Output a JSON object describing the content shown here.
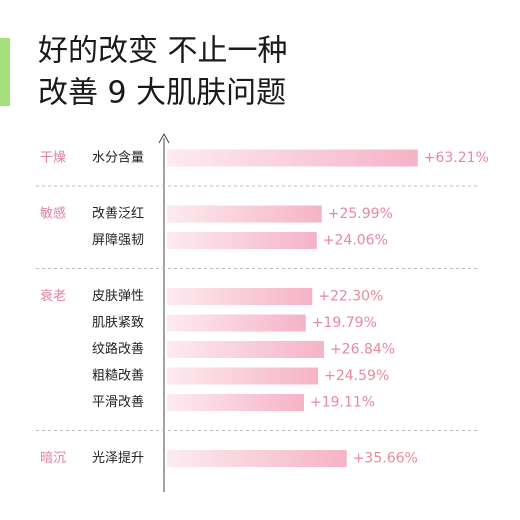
{
  "chart_data": {
    "type": "bar",
    "orientation": "horizontal",
    "title": "好的改变 不止一种",
    "subtitle": "改善 9 大肌肤问题",
    "color": "#f5b3c6",
    "xlim": [
      -34,
      85
    ],
    "groups": [
      {
        "name": "干燥",
        "categories": [
          "水分含量"
        ],
        "values": [
          63.21
        ],
        "value_labels": [
          "+63.21%"
        ]
      },
      {
        "name": "敏感",
        "categories": [
          "改善泛红",
          "屏障强韧"
        ],
        "values": [
          25.99,
          24.06
        ],
        "value_labels": [
          "+25.99%",
          "+24.06%"
        ]
      },
      {
        "name": "衰老",
        "categories": [
          "皮肤弹性",
          "肌肤紧致",
          "纹路改善",
          "粗糙改善",
          "平滑改善"
        ],
        "values": [
          22.3,
          19.79,
          26.84,
          24.59,
          19.11
        ],
        "value_labels": [
          "+22.30%",
          "+19.79%",
          "+26.84%",
          "+24.59%",
          "+19.11%"
        ]
      },
      {
        "name": "暗沉",
        "categories": [
          "光泽提升"
        ],
        "values": [
          35.66
        ],
        "value_labels": [
          "+35.66%"
        ]
      }
    ]
  }
}
